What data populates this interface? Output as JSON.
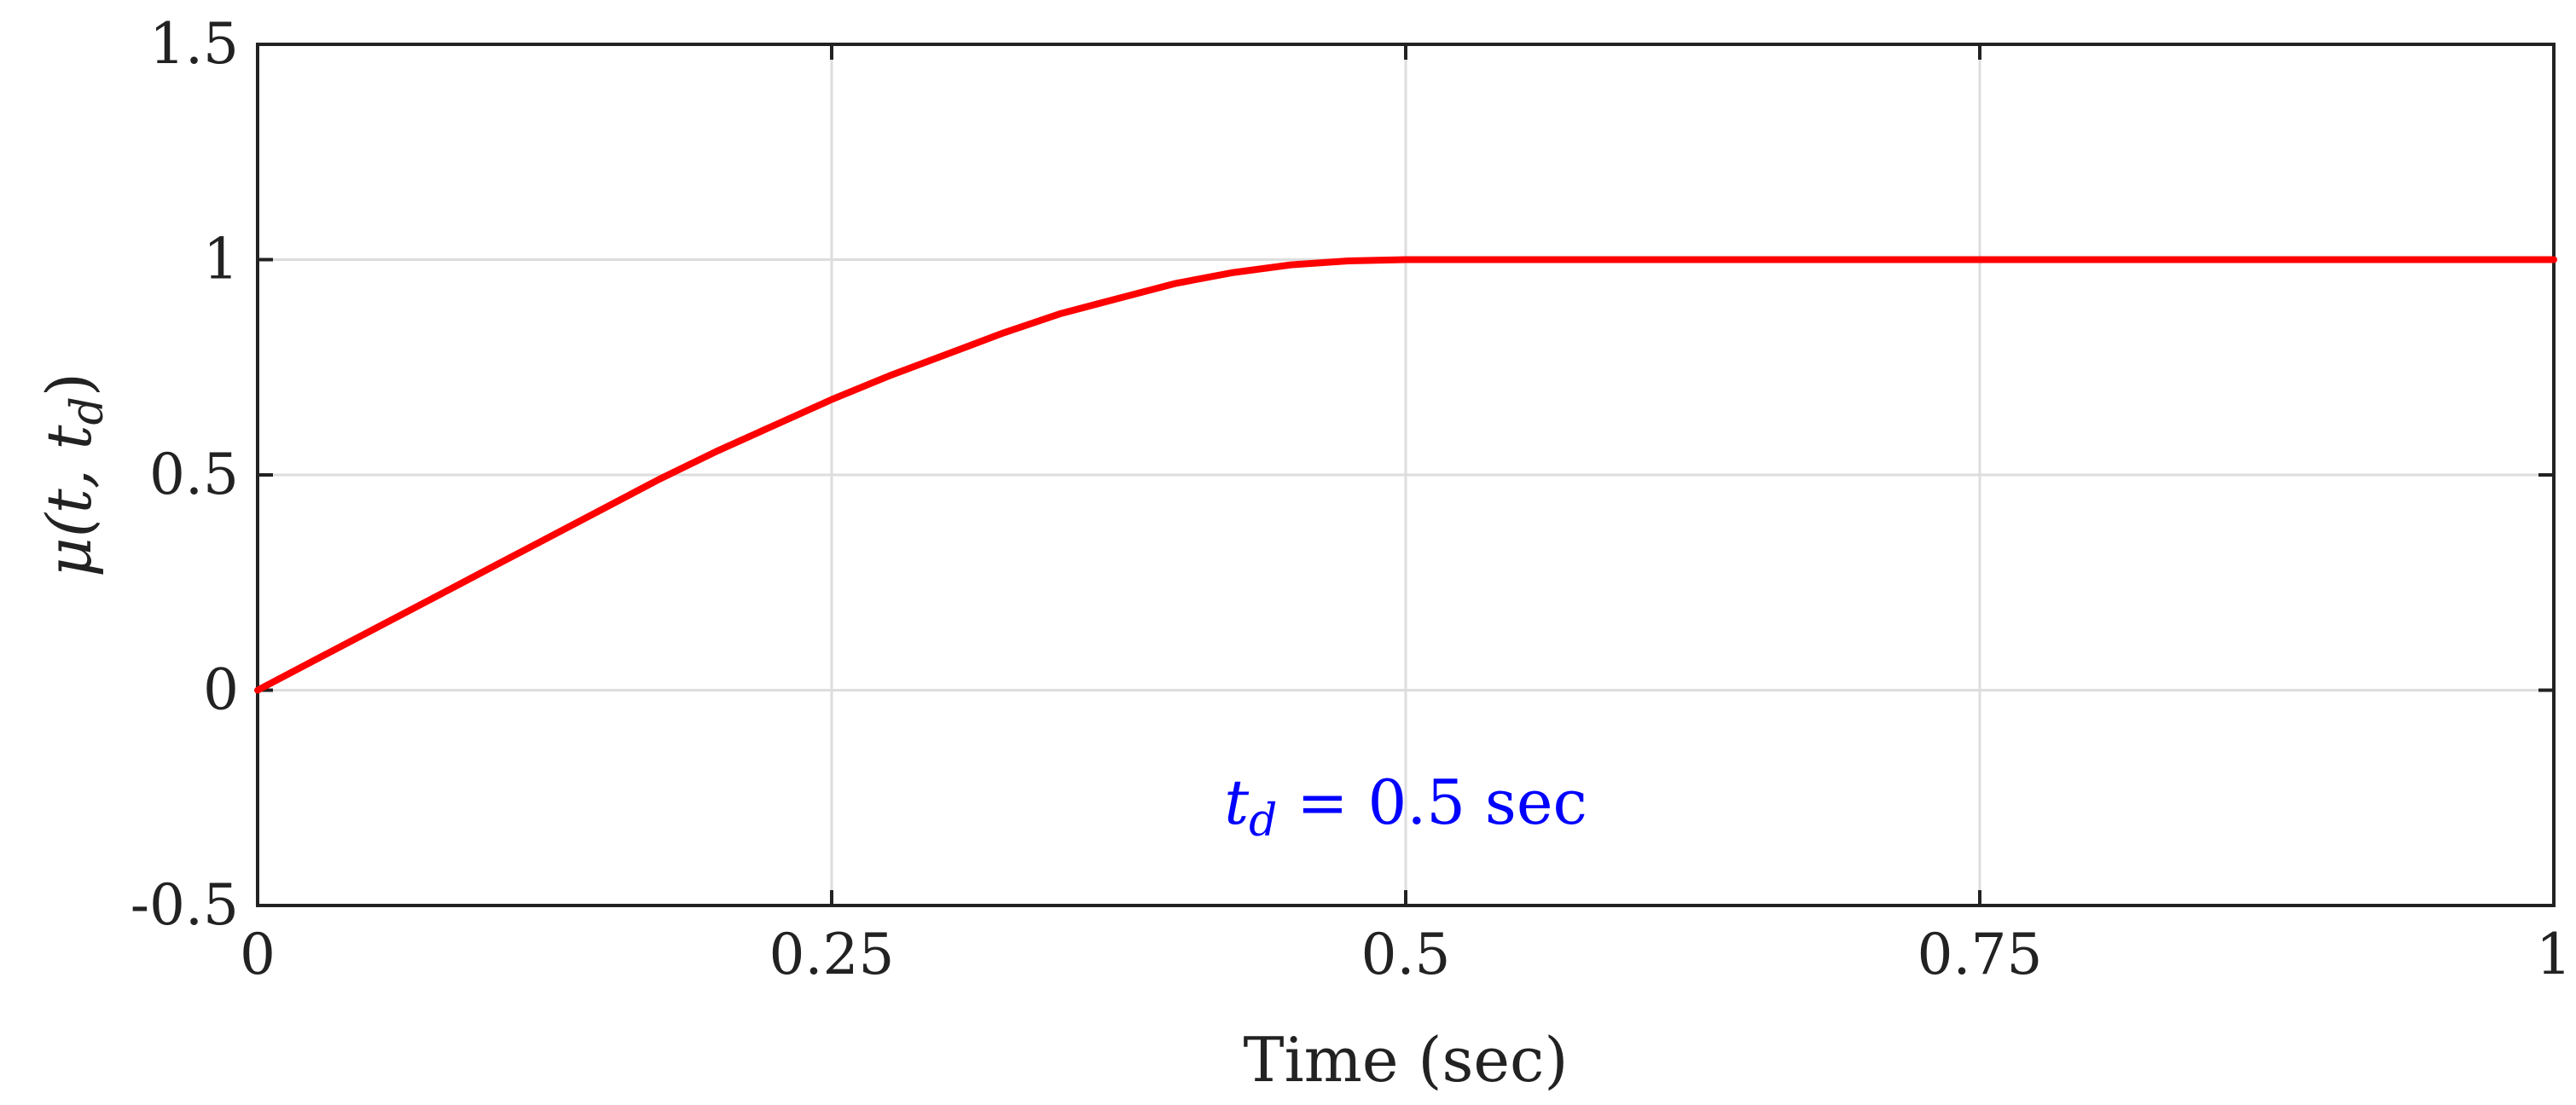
{
  "chart_data": {
    "type": "line",
    "xlabel": "Time (sec)",
    "ylabel": {
      "prefix": "μ(t, t",
      "sub": "d",
      "suffix": ")"
    },
    "xlim": [
      0,
      1
    ],
    "ylim": [
      -0.5,
      1.5
    ],
    "grid": true,
    "x_ticks": [
      0,
      0.25,
      0.5,
      0.75,
      1
    ],
    "x_tick_labels": [
      "0",
      "0.25",
      "0.5",
      "0.75",
      "1"
    ],
    "y_ticks": [
      -0.5,
      0,
      0.5,
      1,
      1.5
    ],
    "y_tick_labels": [
      "-0.5",
      "0",
      "0.5",
      "1",
      "1.5"
    ],
    "series": [
      {
        "color": "#ff0000",
        "x": [
          0,
          0.025,
          0.05,
          0.075,
          0.1,
          0.125,
          0.15,
          0.175,
          0.2,
          0.225,
          0.25,
          0.275,
          0.3,
          0.325,
          0.35,
          0.375,
          0.4,
          0.425,
          0.45,
          0.475,
          0.5,
          0.6,
          0.7,
          0.8,
          0.9,
          1.0
        ],
        "y": [
          0,
          0.07,
          0.14,
          0.21,
          0.28,
          0.35,
          0.42,
          0.49,
          0.555,
          0.615,
          0.675,
          0.73,
          0.78,
          0.83,
          0.875,
          0.91,
          0.945,
          0.97,
          0.988,
          0.997,
          1,
          1,
          1,
          1,
          1,
          1
        ]
      }
    ],
    "annotation": {
      "var": "t",
      "sub": "d",
      "rest": " = 0.5 sec",
      "color": "#0000ff",
      "x": 0.5,
      "y": -0.31
    }
  }
}
